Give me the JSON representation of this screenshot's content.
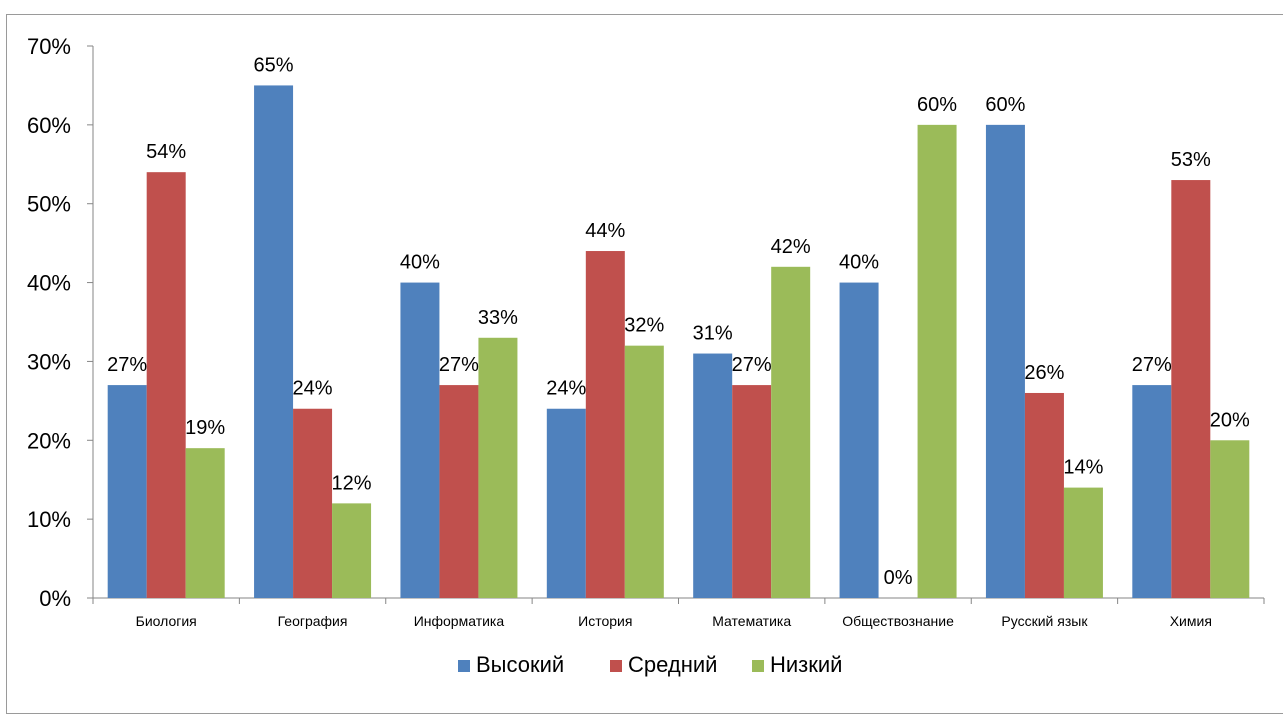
{
  "chart_data": {
    "type": "bar",
    "categories": [
      "Биология",
      "География",
      "Информатика",
      "История",
      "Математика",
      "Обществознание",
      "Русский язык",
      "Химия"
    ],
    "series": [
      {
        "name": "Высокий",
        "color": "#4f81bd",
        "values": [
          27,
          65,
          40,
          24,
          31,
          40,
          60,
          27
        ]
      },
      {
        "name": "Средний",
        "color": "#c0504d",
        "values": [
          54,
          24,
          27,
          44,
          27,
          0,
          26,
          53
        ]
      },
      {
        "name": "Низкий",
        "color": "#9bbb59",
        "values": [
          19,
          12,
          33,
          32,
          42,
          60,
          14,
          20
        ]
      }
    ],
    "data_labels": [
      [
        "27%",
        "65%",
        "40%",
        "24%",
        "31%",
        "40%",
        "60%",
        "27%"
      ],
      [
        "54%",
        "24%",
        "27%",
        "44%",
        "27%",
        "0%",
        "26%",
        "53%"
      ],
      [
        "19%",
        "12%",
        "33%",
        "32%",
        "42%",
        "60%",
        "14%",
        "20%"
      ]
    ],
    "ylim": [
      0,
      70
    ],
    "y_ticks": [
      0,
      10,
      20,
      30,
      40,
      50,
      60,
      70
    ],
    "y_tick_labels": [
      "0%",
      "10%",
      "20%",
      "30%",
      "40%",
      "50%",
      "60%",
      "70%"
    ],
    "grid": false,
    "legend_position": "bottom"
  }
}
